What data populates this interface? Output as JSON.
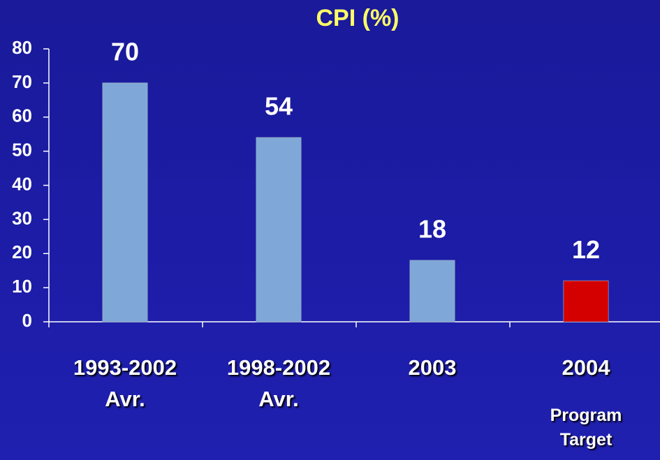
{
  "chart_data": {
    "type": "bar",
    "title": "CPI (%)",
    "categories": [
      "1993-2002 Avr.",
      "1998-2002 Avr.",
      "2003",
      "2004"
    ],
    "values": [
      70,
      54,
      18,
      12
    ],
    "colors": [
      "#7fa8d8",
      "#7fa8d8",
      "#7fa8d8",
      "#d40000"
    ],
    "annotations": [
      {
        "text": "Program Target",
        "category": 3
      }
    ],
    "ylim": [
      0,
      80
    ],
    "yticks": [
      0,
      10,
      20,
      30,
      40,
      50,
      60,
      70,
      80
    ],
    "grid": false
  }
}
